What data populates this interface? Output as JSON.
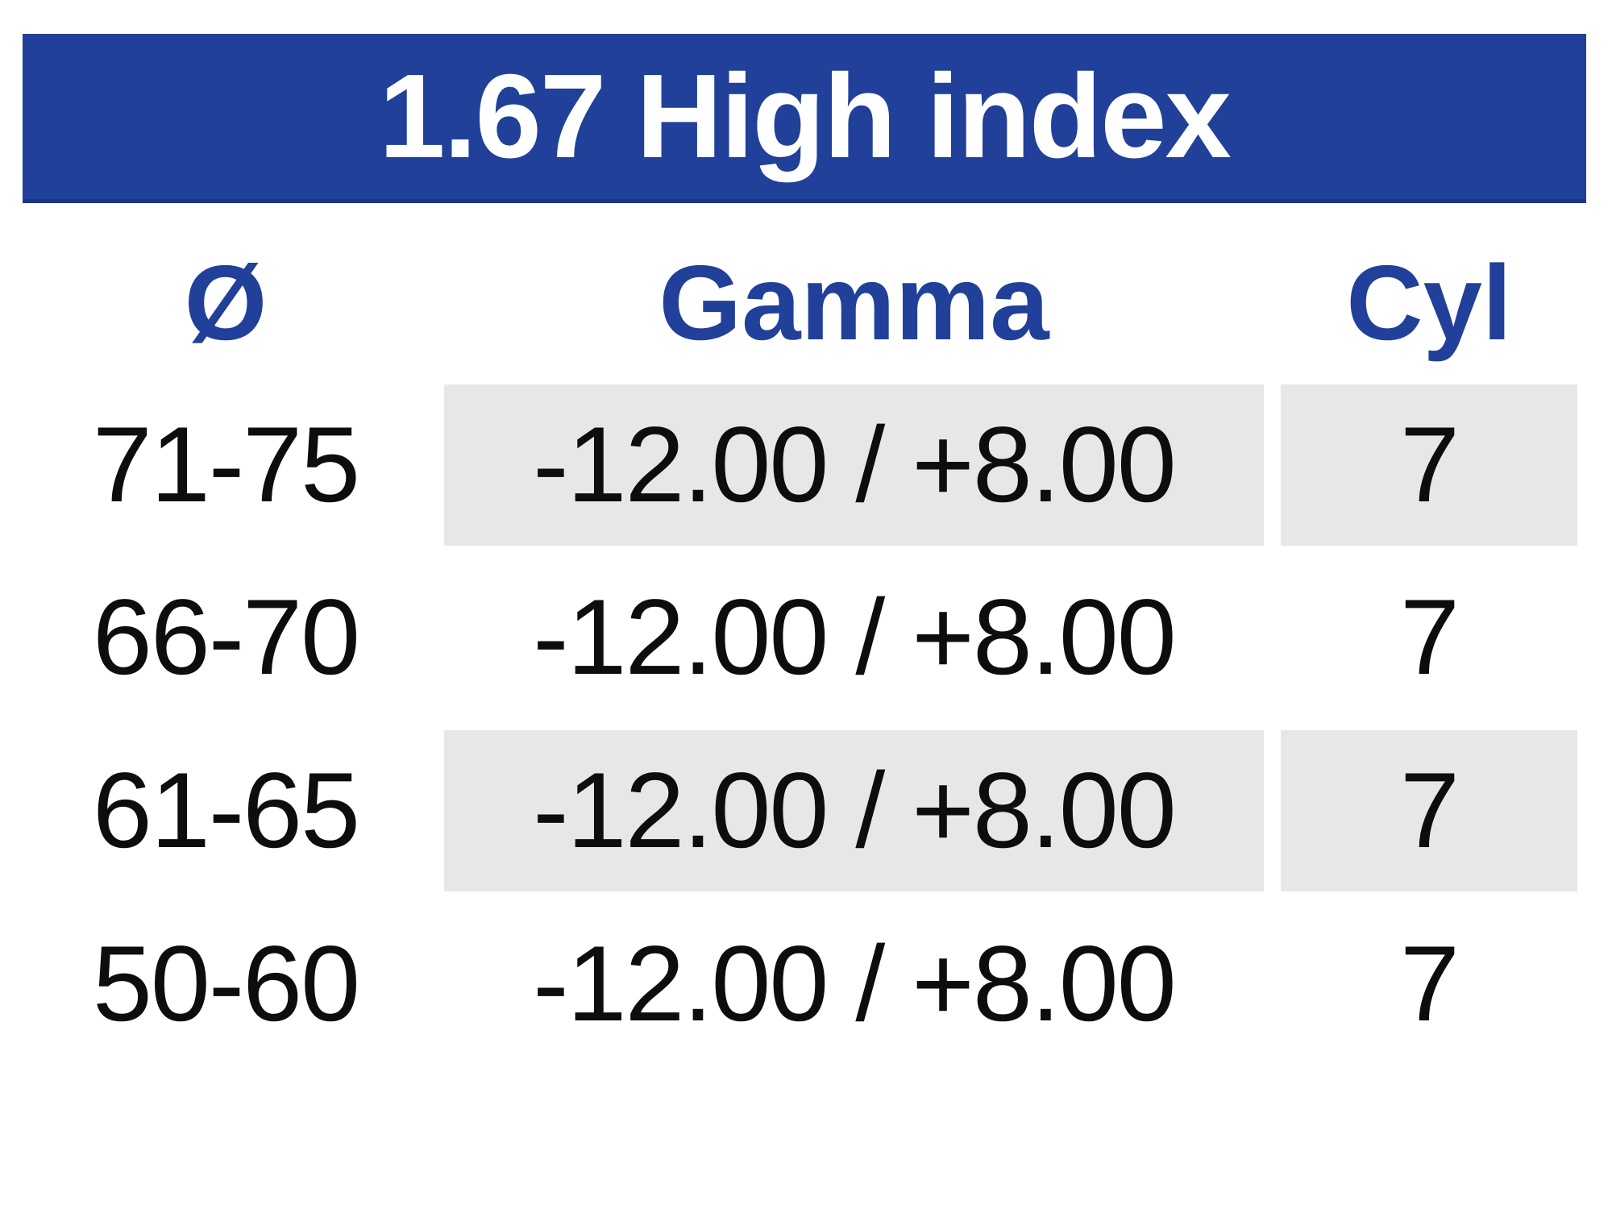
{
  "table": {
    "title": "1.67 High index",
    "columns": [
      {
        "key": "diameter",
        "label": "Ø"
      },
      {
        "key": "gamma",
        "label": "Gamma"
      },
      {
        "key": "cyl",
        "label": "Cyl"
      }
    ],
    "rows": [
      {
        "diameter": "71-75",
        "gamma": "-12.00 / +8.00",
        "cyl": "7",
        "shaded": true
      },
      {
        "diameter": "66-70",
        "gamma": "-12.00 / +8.00",
        "cyl": "7",
        "shaded": false
      },
      {
        "diameter": "61-65",
        "gamma": "-12.00 / +8.00",
        "cyl": "7",
        "shaded": true
      },
      {
        "diameter": "50-60",
        "gamma": "-12.00 / +8.00",
        "cyl": "7",
        "shaded": false
      }
    ]
  },
  "colors": {
    "header_bg": "#21409a",
    "header_bg_edge": "#1b3582",
    "header_text": "#ffffff",
    "column_header_text": "#21409a",
    "row_shade": "#e7e7e8",
    "data_text": "#0d0d0d",
    "background": "#ffffff"
  }
}
